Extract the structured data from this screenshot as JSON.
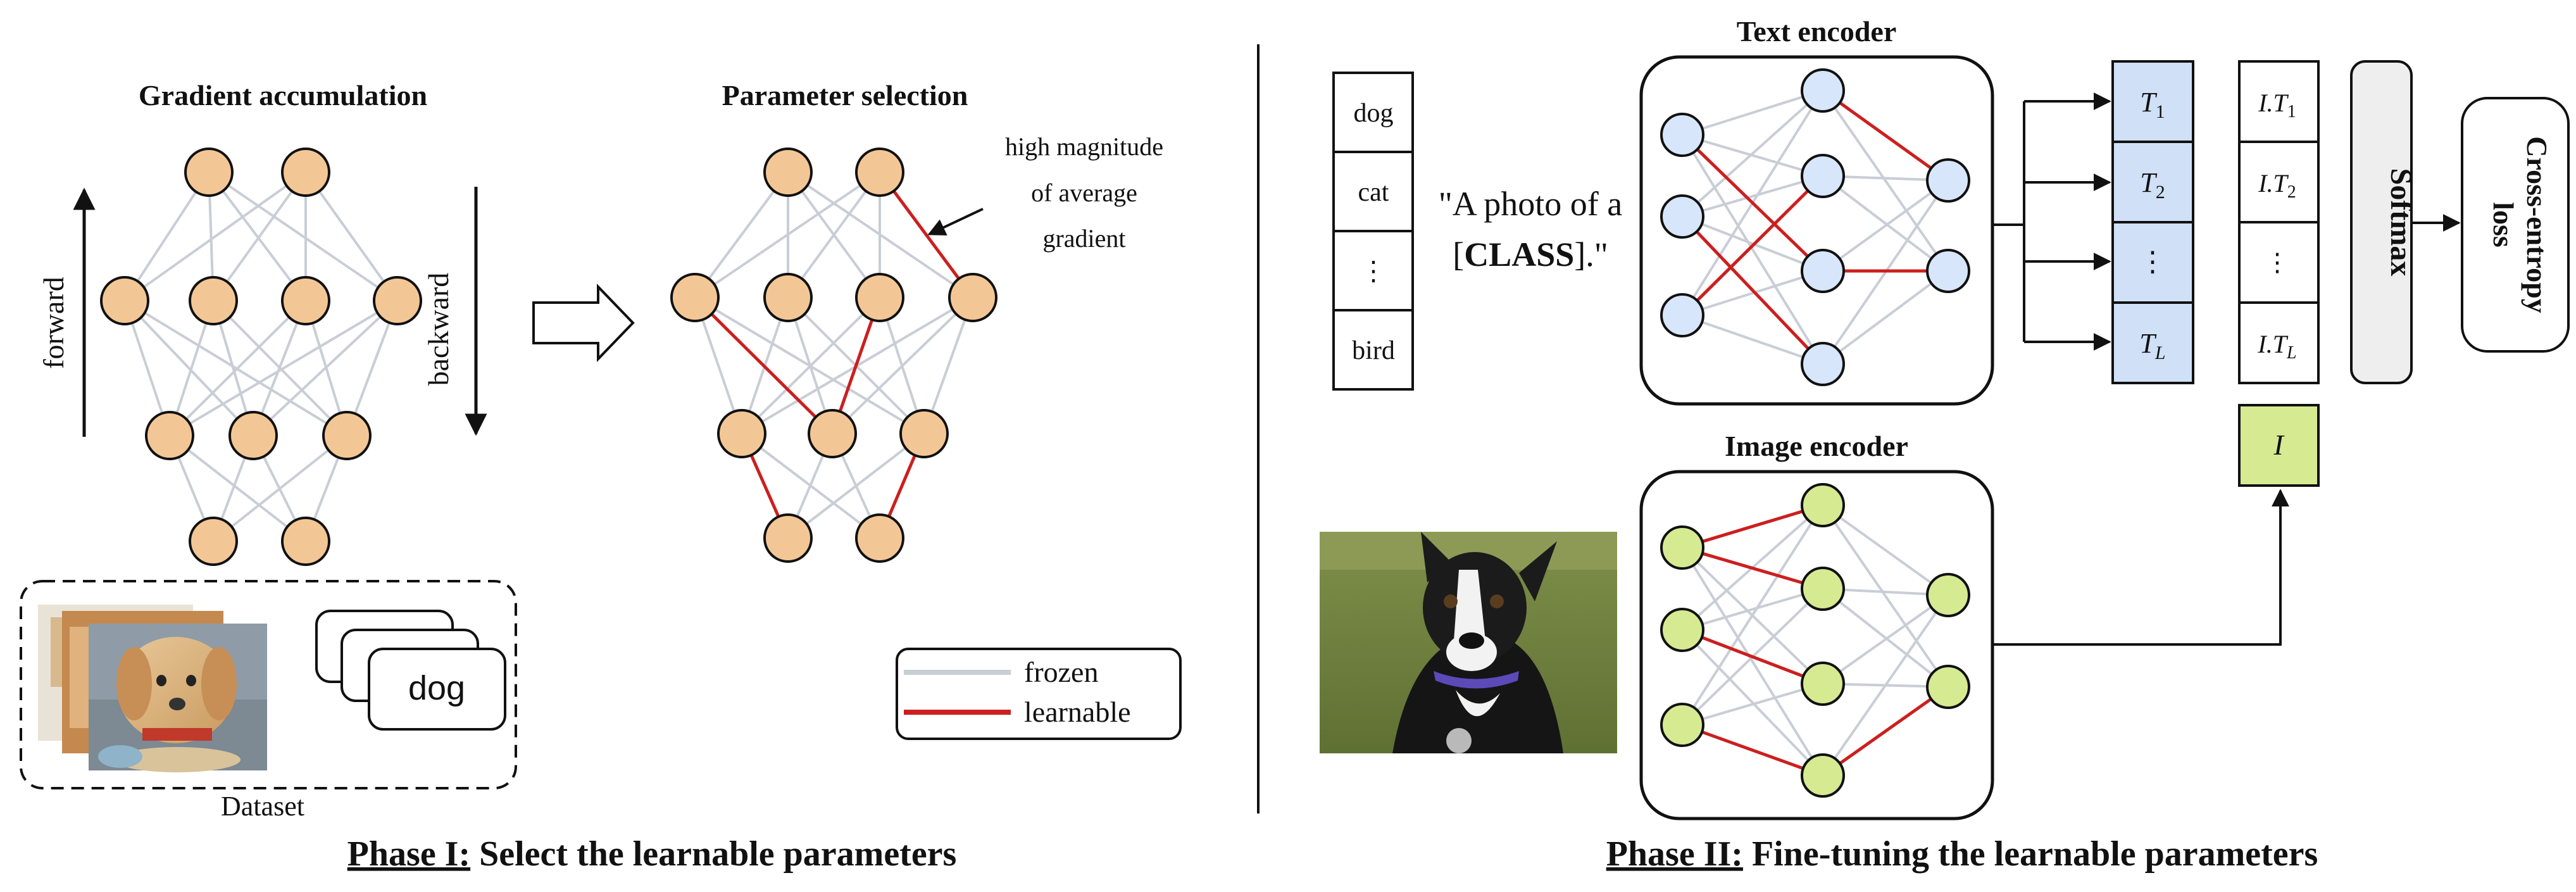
{
  "colors": {
    "frozen": "#c9cdd6",
    "learnable": "#cc1f1f",
    "orange_node": "#f3c795",
    "blue_node": "#d7e6fa",
    "green_node": "#d6ea92",
    "text_feature_fill": "#cfe0f7",
    "image_feature_fill": "#d6ea92"
  },
  "phase1": {
    "gradient_title": "Gradient accumulation",
    "selection_title": "Parameter selection",
    "forward_label": "forward",
    "backward_label": "backward",
    "annotation": [
      "high magnitude",
      "of average",
      "gradient"
    ],
    "dataset_label": "Dataset",
    "dataset_card_text": "dog",
    "legend": {
      "frozen": "frozen",
      "learnable": "learnable"
    },
    "caption_prefix": "Phase I:",
    "caption_rest": " Select the learnable parameters"
  },
  "phase2": {
    "text_encoder_title": "Text encoder",
    "image_encoder_title": "Image encoder",
    "class_names": [
      "dog",
      "cat",
      "⋮",
      "bird"
    ],
    "prompt_line1": "\"A photo of a",
    "prompt_line2_open": "[",
    "prompt_line2_class": "CLASS",
    "prompt_line2_close": "].\"",
    "text_features": [
      {
        "base": "T",
        "sub": "1"
      },
      {
        "base": "T",
        "sub": "2"
      },
      {
        "base": "⋮",
        "sub": ""
      },
      {
        "base": "T",
        "sub": "L"
      }
    ],
    "similarities": [
      {
        "base": "I.T",
        "sub": "1"
      },
      {
        "base": "I.T",
        "sub": "2"
      },
      {
        "base": "⋮",
        "sub": ""
      },
      {
        "base": "I.T",
        "sub": "L"
      }
    ],
    "image_feature": "I",
    "softmax_label": "Softmax",
    "loss_label_line1": "Cross-entropy",
    "loss_label_line2": "loss",
    "caption_prefix": "Phase II:",
    "caption_rest": " Fine-tuning the learnable parameters"
  }
}
